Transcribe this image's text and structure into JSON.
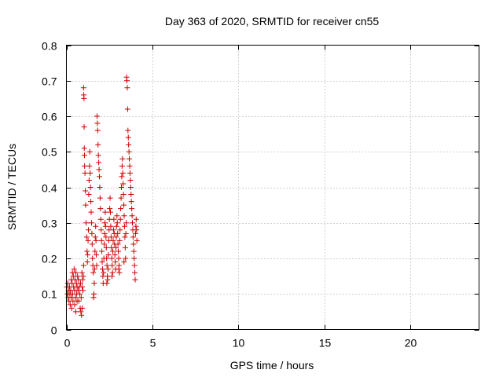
{
  "chart_data": {
    "type": "scatter",
    "title": "Day 363 of 2020, SRMTID for receiver cn55",
    "xlabel": "GPS time / hours",
    "ylabel": "SRMTID / TECUs",
    "xlim": [
      0,
      24
    ],
    "ylim": [
      0,
      0.8
    ],
    "x_ticks": [
      0,
      5,
      10,
      15,
      20
    ],
    "x_tick_labels": [
      "0",
      "5",
      "10",
      "15",
      "20"
    ],
    "y_ticks": [
      0,
      0.1,
      0.2,
      0.3,
      0.4,
      0.5,
      0.6,
      0.7,
      0.8
    ],
    "y_tick_labels": [
      "0",
      "0.1",
      "0.2",
      "0.3",
      "0.4",
      "0.5",
      "0.6",
      "0.7",
      "0.8"
    ],
    "grid": true,
    "marker": "plus",
    "color": "#cc0000",
    "series": [
      {
        "name": "SRMTID",
        "points": [
          [
            0.02,
            0.12
          ],
          [
            0.05,
            0.1
          ],
          [
            0.08,
            0.13
          ],
          [
            0.1,
            0.09
          ],
          [
            0.12,
            0.11
          ],
          [
            0.15,
            0.08
          ],
          [
            0.18,
            0.12
          ],
          [
            0.2,
            0.1
          ],
          [
            0.22,
            0.07
          ],
          [
            0.25,
            0.11
          ],
          [
            0.28,
            0.09
          ],
          [
            0.3,
            0.06
          ],
          [
            0.33,
            0.13
          ],
          [
            0.36,
            0.1
          ],
          [
            0.38,
            0.08
          ],
          [
            0.4,
            0.15
          ],
          [
            0.42,
            0.12
          ],
          [
            0.45,
            0.17
          ],
          [
            0.48,
            0.11
          ],
          [
            0.5,
            0.14
          ],
          [
            0.52,
            0.09
          ],
          [
            0.55,
            0.16
          ],
          [
            0.58,
            0.13
          ],
          [
            0.6,
            0.1
          ],
          [
            0.62,
            0.12
          ],
          [
            0.65,
            0.15
          ],
          [
            0.68,
            0.11
          ],
          [
            0.7,
            0.14
          ],
          [
            0.72,
            0.08
          ],
          [
            0.75,
            0.12
          ],
          [
            0.78,
            0.1
          ],
          [
            0.8,
            0.06
          ],
          [
            0.82,
            0.13
          ],
          [
            0.84,
            0.05
          ],
          [
            0.86,
            0.09
          ],
          [
            0.88,
            0.04
          ],
          [
            0.9,
            0.16
          ],
          [
            0.92,
            0.12
          ],
          [
            0.94,
            0.14
          ],
          [
            0.96,
            0.11
          ],
          [
            0.98,
            0.15
          ],
          [
            1.0,
            0.18
          ],
          [
            0.48,
            0.07
          ],
          [
            0.55,
            0.05
          ],
          [
            0.62,
            0.08
          ],
          [
            0.35,
            0.16
          ],
          [
            0.28,
            0.14
          ],
          [
            0.92,
            0.06
          ],
          [
            1.0,
            0.68
          ],
          [
            1.01,
            0.66
          ],
          [
            1.02,
            0.65
          ],
          [
            1.03,
            0.57
          ],
          [
            1.04,
            0.51
          ],
          [
            1.05,
            0.49
          ],
          [
            1.06,
            0.46
          ],
          [
            1.08,
            0.44
          ],
          [
            1.1,
            0.39
          ],
          [
            1.12,
            0.35
          ],
          [
            1.15,
            0.3
          ],
          [
            1.18,
            0.26
          ],
          [
            1.2,
            0.22
          ],
          [
            1.22,
            0.19
          ],
          [
            1.24,
            0.21
          ],
          [
            1.26,
            0.25
          ],
          [
            1.28,
            0.28
          ],
          [
            1.3,
            0.38
          ],
          [
            1.32,
            0.42
          ],
          [
            1.34,
            0.46
          ],
          [
            1.36,
            0.5
          ],
          [
            1.38,
            0.44
          ],
          [
            1.4,
            0.4
          ],
          [
            1.42,
            0.36
          ],
          [
            1.44,
            0.33
          ],
          [
            1.46,
            0.3
          ],
          [
            1.48,
            0.27
          ],
          [
            1.5,
            0.24
          ],
          [
            1.52,
            0.2
          ],
          [
            1.54,
            0.18
          ],
          [
            1.56,
            0.16
          ],
          [
            1.58,
            0.09
          ],
          [
            1.6,
            0.1
          ],
          [
            1.62,
            0.13
          ],
          [
            1.64,
            0.17
          ],
          [
            1.66,
            0.22
          ],
          [
            1.68,
            0.26
          ],
          [
            1.7,
            0.29
          ],
          [
            1.72,
            0.25
          ],
          [
            1.74,
            0.21
          ],
          [
            1.76,
            0.18
          ],
          [
            1.78,
            0.6
          ],
          [
            1.8,
            0.58
          ],
          [
            1.82,
            0.56
          ],
          [
            1.84,
            0.52
          ],
          [
            1.86,
            0.49
          ],
          [
            1.88,
            0.47
          ],
          [
            1.9,
            0.45
          ],
          [
            1.92,
            0.43
          ],
          [
            1.94,
            0.4
          ],
          [
            1.96,
            0.37
          ],
          [
            1.98,
            0.34
          ],
          [
            2.0,
            0.31
          ],
          [
            2.02,
            0.28
          ],
          [
            2.04,
            0.25
          ],
          [
            2.06,
            0.22
          ],
          [
            2.08,
            0.19
          ],
          [
            2.1,
            0.17
          ],
          [
            2.12,
            0.15
          ],
          [
            2.14,
            0.13
          ],
          [
            2.16,
            0.16
          ],
          [
            2.18,
            0.2
          ],
          [
            2.2,
            0.24
          ],
          [
            2.22,
            0.27
          ],
          [
            2.24,
            0.3
          ],
          [
            2.26,
            0.33
          ],
          [
            2.28,
            0.29
          ],
          [
            2.3,
            0.26
          ],
          [
            2.32,
            0.23
          ],
          [
            2.34,
            0.2
          ],
          [
            2.36,
            0.18
          ],
          [
            2.38,
            0.15
          ],
          [
            2.4,
            0.14
          ],
          [
            2.42,
            0.17
          ],
          [
            2.44,
            0.21
          ],
          [
            2.46,
            0.25
          ],
          [
            2.48,
            0.28
          ],
          [
            2.5,
            0.31
          ],
          [
            2.52,
            0.34
          ],
          [
            2.54,
            0.37
          ],
          [
            2.56,
            0.33
          ],
          [
            2.58,
            0.29
          ],
          [
            2.6,
            0.26
          ],
          [
            2.62,
            0.23
          ],
          [
            2.64,
            0.2
          ],
          [
            2.66,
            0.18
          ],
          [
            2.68,
            0.16
          ],
          [
            2.7,
            0.22
          ],
          [
            2.72,
            0.25
          ],
          [
            2.74,
            0.28
          ],
          [
            2.76,
            0.31
          ],
          [
            2.78,
            0.27
          ],
          [
            2.8,
            0.24
          ],
          [
            2.82,
            0.21
          ],
          [
            2.84,
            0.19
          ],
          [
            2.86,
            0.17
          ],
          [
            2.88,
            0.23
          ],
          [
            2.9,
            0.26
          ],
          [
            2.92,
            0.29
          ],
          [
            2.94,
            0.32
          ],
          [
            2.96,
            0.3
          ],
          [
            2.98,
            0.27
          ],
          [
            3.0,
            0.24
          ],
          [
            3.02,
            0.22
          ],
          [
            3.04,
            0.2
          ],
          [
            3.06,
            0.18
          ],
          [
            3.08,
            0.16
          ],
          [
            3.1,
            0.25
          ],
          [
            3.12,
            0.28
          ],
          [
            3.14,
            0.31
          ],
          [
            3.16,
            0.34
          ],
          [
            3.18,
            0.37
          ],
          [
            3.2,
            0.4
          ],
          [
            3.22,
            0.43
          ],
          [
            3.24,
            0.46
          ],
          [
            3.26,
            0.48
          ],
          [
            3.28,
            0.44
          ],
          [
            3.3,
            0.41
          ],
          [
            3.32,
            0.38
          ],
          [
            3.34,
            0.35
          ],
          [
            3.36,
            0.32
          ],
          [
            3.38,
            0.29
          ],
          [
            3.4,
            0.26
          ],
          [
            3.42,
            0.23
          ],
          [
            3.44,
            0.2
          ],
          [
            3.46,
            0.27
          ],
          [
            3.48,
            0.3
          ],
          [
            3.5,
            0.71
          ],
          [
            3.52,
            0.7
          ],
          [
            3.54,
            0.68
          ],
          [
            3.56,
            0.62
          ],
          [
            3.58,
            0.56
          ],
          [
            3.6,
            0.54
          ],
          [
            3.62,
            0.52
          ],
          [
            3.64,
            0.5
          ],
          [
            3.66,
            0.48
          ],
          [
            3.68,
            0.46
          ],
          [
            3.7,
            0.44
          ],
          [
            3.72,
            0.42
          ],
          [
            3.74,
            0.4
          ],
          [
            3.76,
            0.38
          ],
          [
            3.78,
            0.36
          ],
          [
            3.8,
            0.34
          ],
          [
            3.82,
            0.32
          ],
          [
            3.84,
            0.3
          ],
          [
            3.86,
            0.28
          ],
          [
            3.88,
            0.26
          ],
          [
            3.9,
            0.24
          ],
          [
            3.92,
            0.22
          ],
          [
            3.94,
            0.2
          ],
          [
            3.96,
            0.18
          ],
          [
            3.98,
            0.16
          ],
          [
            4.0,
            0.14
          ],
          [
            4.02,
            0.27
          ],
          [
            4.04,
            0.29
          ],
          [
            4.06,
            0.31
          ],
          [
            4.08,
            0.28
          ],
          [
            4.1,
            0.25
          ],
          [
            2.35,
            0.13
          ],
          [
            2.65,
            0.15
          ],
          [
            3.05,
            0.17
          ],
          [
            3.35,
            0.19
          ]
        ]
      }
    ]
  }
}
